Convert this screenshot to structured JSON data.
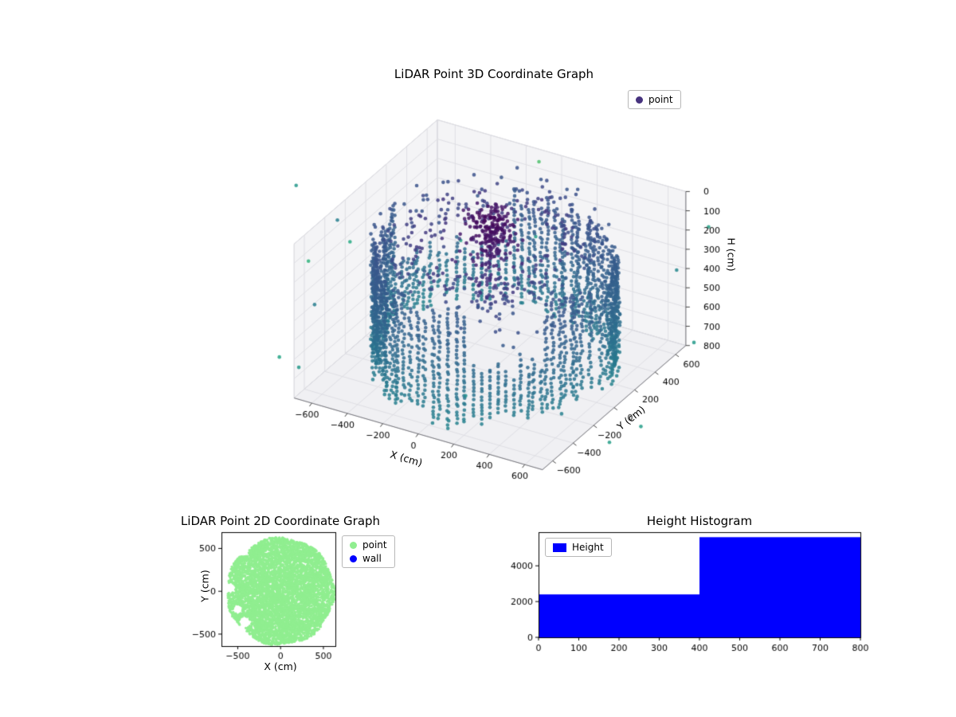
{
  "figure": {
    "background": "#ffffff"
  },
  "chart_data": [
    {
      "id": "lidar-3d",
      "type": "scatter",
      "projection": "3d",
      "title": "LiDAR Point 3D Coordinate Graph",
      "xlabel": "X (cm)",
      "ylabel": "Y (cm)",
      "zlabel": "H (cm)",
      "xlim": [
        -700,
        700
      ],
      "ylim": [
        -700,
        700
      ],
      "hlim": [
        0,
        800
      ],
      "h_axis_inverted": true,
      "xticks": [
        -600,
        -400,
        -200,
        0,
        200,
        400,
        600
      ],
      "yticks": [
        -600,
        -400,
        -200,
        0,
        200,
        400,
        600
      ],
      "hticks": [
        0,
        100,
        200,
        300,
        400,
        500,
        600,
        700,
        800
      ],
      "view": {
        "elev": 30,
        "azim": -60
      },
      "grid": true,
      "legend": {
        "position": "upper right",
        "entries": [
          {
            "label": "point",
            "marker_color": "#46327e"
          }
        ]
      },
      "colormap": "viridis",
      "color_by": "distance from sensor origin (cm)",
      "color_range": [
        0,
        2200
      ],
      "point_alpha": 0.85,
      "point_cloud_summary": {
        "description": "Cylindrical room scan: dense vertical dot columns on a ring of radius ~600 cm spanning heights ~150-780 cm, a scattered upper rim ring near H 50-220 cm, a dark dense cluster at the sensor near the top center, sparse interior points, and a few distant teal/green outlier returns.",
        "seed": 12,
        "wall": {
          "columns": 96,
          "radius_base": 600,
          "radius_wobble": 40,
          "h_top_min": 130,
          "h_top_max": 260,
          "h_bottom_min": 680,
          "h_bottom_max": 780,
          "step": 20,
          "jitter": 14,
          "gap_arcs": [
            [
              1.9,
              2.9
            ],
            [
              5.05,
              5.7
            ]
          ]
        },
        "rim": {
          "count": 240,
          "r_min": 330,
          "r_max": 590,
          "h_min": 40,
          "h_max": 220
        },
        "center_blob": {
          "count": 170,
          "cx": -30,
          "cy": 60,
          "r_max": 140,
          "h_min": 0,
          "h_max": 200
        },
        "center_column": {
          "count": 80,
          "r_max": 90,
          "h_min": 0,
          "h_max": 470
        },
        "interior": {
          "count": 90,
          "r_max": 520,
          "h_min": 150,
          "h_max": 520
        },
        "outliers": {
          "count": 16,
          "r_min": 820,
          "r_max": 1250,
          "h_min": 150,
          "h_max": 800
        },
        "far_outliers": {
          "count": 3,
          "r_min": 1400,
          "r_max": 1700,
          "h_min": 300,
          "h_max": 700
        }
      }
    },
    {
      "id": "lidar-2d",
      "type": "scatter",
      "title": "LiDAR Point 2D Coordinate Graph",
      "xlabel": "X (cm)",
      "ylabel": "Y (cm)",
      "xlim": [
        -690,
        640
      ],
      "ylim": [
        -640,
        690
      ],
      "xticks": [
        -500,
        0,
        500
      ],
      "yticks": [
        -500,
        0,
        500
      ],
      "legend": {
        "position": "outside upper right",
        "entries": [
          {
            "label": "point",
            "marker_color": "#90ee90"
          },
          {
            "label": "wall",
            "marker_color": "#0000ff"
          }
        ]
      },
      "series": [
        {
          "name": "point",
          "color": "#90ee90",
          "shape": "filled disk of scan points",
          "center": [
            0,
            0
          ],
          "radius": 625,
          "dot_count": 6500,
          "seed": 5,
          "holes": [
            [
              -440,
              480,
              75
            ],
            [
              -585,
              40,
              60
            ],
            [
              -500,
              -210,
              55
            ],
            [
              -420,
              -360,
              65
            ]
          ]
        },
        {
          "name": "wall",
          "color": "#0000ff",
          "points": []
        }
      ]
    },
    {
      "id": "height-histogram",
      "type": "bar",
      "title": "Height Histogram",
      "bar_color": "#0000ff",
      "legend": {
        "position": "upper left",
        "entries": [
          {
            "label": "Height",
            "marker_color": "#0000ff"
          }
        ]
      },
      "bin_edges": [
        0,
        400,
        800
      ],
      "values": [
        2400,
        5600
      ],
      "xlim": [
        0,
        800
      ],
      "ylim": [
        0,
        5880
      ],
      "xticks": [
        0,
        100,
        200,
        300,
        400,
        500,
        600,
        700,
        800
      ],
      "yticks": [
        0,
        2000,
        4000
      ]
    }
  ]
}
